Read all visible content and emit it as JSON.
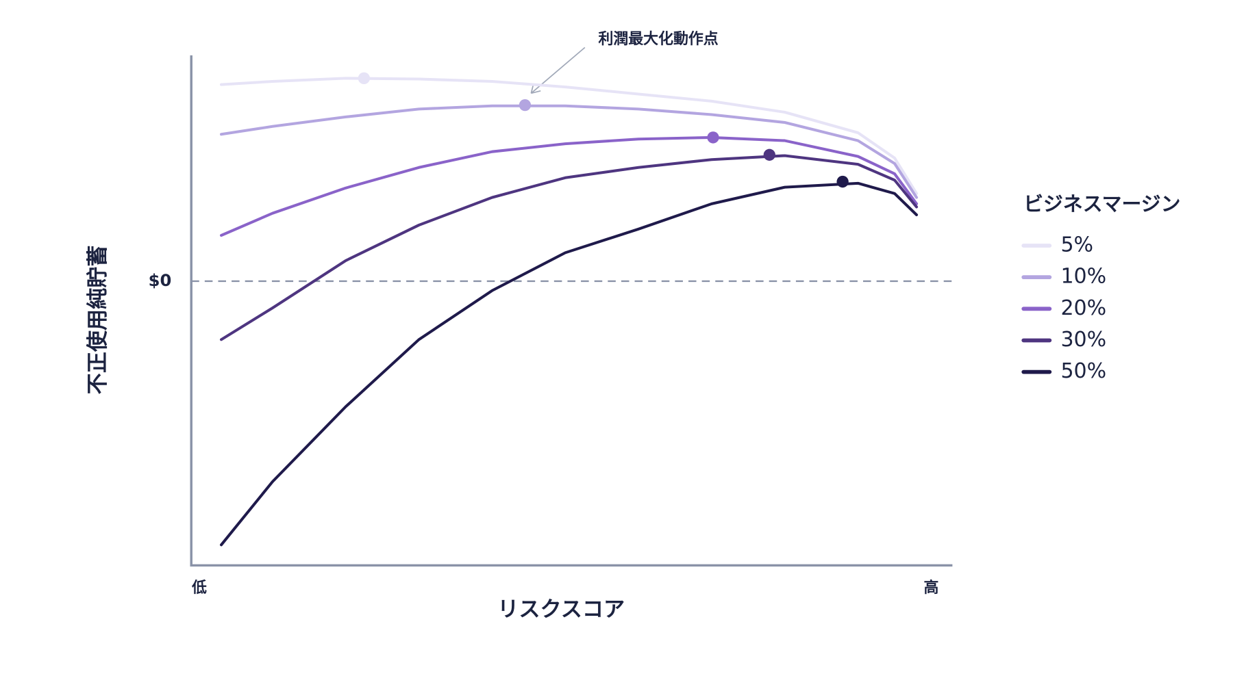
{
  "chart_data": {
    "type": "line",
    "annotation": "利潤最大化動作点",
    "x_label": "リスクスコア",
    "y_label": "不正使用純貯蓄",
    "legend_title": "ビジネスマージン",
    "legend_position": "right",
    "x": [
      3,
      10,
      20,
      30,
      40,
      50,
      60,
      70,
      80,
      90,
      95,
      98
    ],
    "xlim": [
      -1.1,
      102.9
    ],
    "xticks": [
      {
        "value": 0,
        "label": "低"
      },
      {
        "value": 100,
        "label": "高"
      }
    ],
    "ylim": [
      -36,
      28.6
    ],
    "yticks": [
      {
        "value": 0,
        "label": "$0"
      }
    ],
    "series": [
      {
        "name": "5%",
        "color": "#e6e3f6",
        "values": [
          24.9,
          25.3,
          25.7,
          25.6,
          25.3,
          24.6,
          23.7,
          22.8,
          21.4,
          18.8,
          15.6,
          11.1
        ],
        "optimal_x": 22.5,
        "optimal_y": 25.7
      },
      {
        "name": "10%",
        "color": "#b3a5e0",
        "values": [
          18.6,
          19.6,
          20.8,
          21.8,
          22.2,
          22.2,
          21.8,
          21.1,
          20.1,
          17.8,
          14.9,
          10.6
        ],
        "optimal_x": 44.5,
        "optimal_y": 22.3
      },
      {
        "name": "20%",
        "color": "#8a63c9",
        "values": [
          5.8,
          8.6,
          11.8,
          14.4,
          16.4,
          17.4,
          18.0,
          18.2,
          17.8,
          15.8,
          13.6,
          9.8
        ],
        "optimal_x": 70.2,
        "optimal_y": 18.2
      },
      {
        "name": "30%",
        "color": "#4e3580",
        "values": [
          -7.4,
          -3.4,
          2.6,
          7.1,
          10.6,
          13.1,
          14.4,
          15.4,
          15.9,
          14.8,
          12.8,
          9.4
        ],
        "optimal_x": 77.9,
        "optimal_y": 16.0
      },
      {
        "name": "50%",
        "color": "#1f1a4b",
        "values": [
          -33.4,
          -25.4,
          -15.9,
          -7.4,
          -1.2,
          3.6,
          6.6,
          9.8,
          11.9,
          12.4,
          11.1,
          8.4
        ],
        "optimal_x": 87.9,
        "optimal_y": 12.6
      }
    ]
  }
}
